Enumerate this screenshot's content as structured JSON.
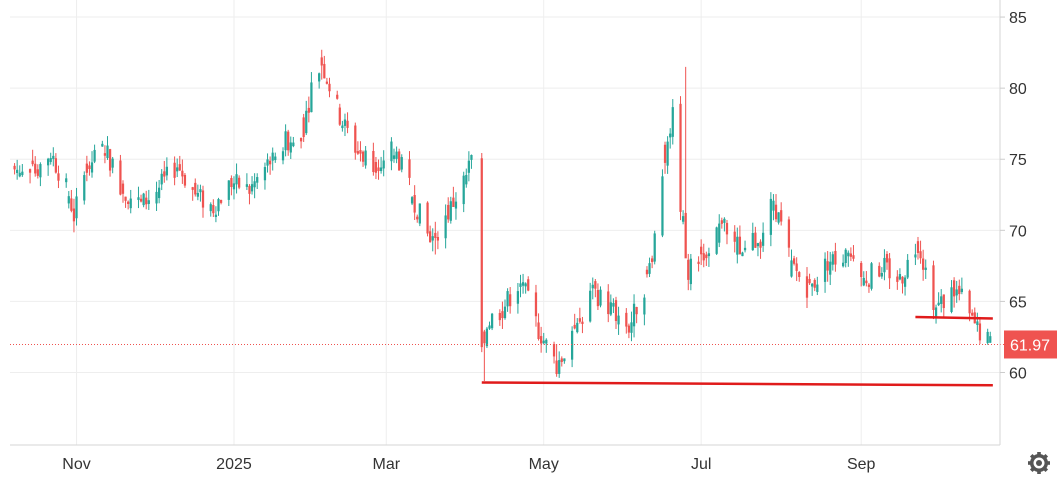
{
  "chart_data": {
    "type": "candlestick",
    "title": "",
    "xlabel": "",
    "ylabel": "",
    "ylim": [
      54.9,
      86.2
    ],
    "grid": true,
    "legend": "none",
    "colors": {
      "up": "#26a69a",
      "down": "#ef5350",
      "support": "#e01b1b",
      "tag": "#ef5350",
      "grid": "#eeeeee"
    },
    "y_ticks": [
      "85",
      "80",
      "75",
      "70",
      "65",
      "60"
    ],
    "x_ticks": [
      {
        "label": "Nov",
        "date": "2024-11-01"
      },
      {
        "label": "2025",
        "date": "2025-01-01"
      },
      {
        "label": "Mar",
        "date": "2025-03-01"
      },
      {
        "label": "May",
        "date": "2025-05-01"
      },
      {
        "label": "Jul",
        "date": "2025-07-01"
      },
      {
        "label": "Sep",
        "date": "2025-09-01"
      }
    ],
    "x_range": [
      "2024-10-07",
      "2025-10-24"
    ],
    "last_price": {
      "label": "61.97",
      "value": 61.97
    },
    "support_lines": [
      {
        "from": "2025-04-07",
        "to": "2025-10-22",
        "y_start": 59.3,
        "y_end": 59.1
      },
      {
        "from": "2025-09-22",
        "to": "2025-10-22",
        "y_start": 63.9,
        "y_end": 63.8
      }
    ],
    "anchors": [
      [
        "2024-10-08",
        74.3
      ],
      [
        "2024-10-15",
        73.9
      ],
      [
        "2024-10-22",
        75.5
      ],
      [
        "2024-10-29",
        72.5
      ],
      [
        "2024-10-31",
        71.0
      ],
      [
        "2024-11-05",
        74.5
      ],
      [
        "2024-11-12",
        75.8
      ],
      [
        "2024-11-19",
        72.8
      ],
      [
        "2024-11-26",
        71.8
      ],
      [
        "2024-12-03",
        73.0
      ],
      [
        "2024-12-10",
        74.6
      ],
      [
        "2024-12-17",
        72.5
      ],
      [
        "2024-12-24",
        71.6
      ],
      [
        "2024-12-31",
        73.4
      ],
      [
        "2025-01-07",
        72.8
      ],
      [
        "2025-01-14",
        74.6
      ],
      [
        "2025-01-21",
        76.2
      ],
      [
        "2025-01-28",
        77.2
      ],
      [
        "2025-01-31",
        80.0
      ],
      [
        "2025-02-04",
        81.8
      ],
      [
        "2025-02-11",
        78.0
      ],
      [
        "2025-02-18",
        75.5
      ],
      [
        "2025-02-25",
        74.8
      ],
      [
        "2025-03-04",
        75.8
      ],
      [
        "2025-03-11",
        72.5
      ],
      [
        "2025-03-18",
        69.2
      ],
      [
        "2025-03-25",
        71.2
      ],
      [
        "2025-04-01",
        73.8
      ],
      [
        "2025-04-03",
        75.0
      ],
      [
        "2025-04-07",
        61.0
      ],
      [
        "2025-04-09",
        63.5
      ],
      [
        "2025-04-15",
        64.5
      ],
      [
        "2025-04-22",
        66.5
      ],
      [
        "2025-04-29",
        63.0
      ],
      [
        "2025-05-06",
        60.5
      ],
      [
        "2025-05-13",
        62.5
      ],
      [
        "2025-05-20",
        65.8
      ],
      [
        "2025-05-27",
        64.5
      ],
      [
        "2025-06-03",
        63.2
      ],
      [
        "2025-06-10",
        66.5
      ],
      [
        "2025-06-13",
        69.5
      ],
      [
        "2025-06-17",
        75.5
      ],
      [
        "2025-06-20",
        78.0
      ],
      [
        "2025-06-23",
        72.0
      ],
      [
        "2025-06-26",
        67.0
      ],
      [
        "2025-07-03",
        68.8
      ],
      [
        "2025-07-10",
        70.2
      ],
      [
        "2025-07-17",
        68.5
      ],
      [
        "2025-07-24",
        69.5
      ],
      [
        "2025-07-29",
        72.2
      ],
      [
        "2025-08-05",
        67.5
      ],
      [
        "2025-08-12",
        65.8
      ],
      [
        "2025-08-19",
        67.8
      ],
      [
        "2025-08-26",
        68.2
      ],
      [
        "2025-09-02",
        66.5
      ],
      [
        "2025-09-09",
        67.5
      ],
      [
        "2025-09-16",
        66.5
      ],
      [
        "2025-09-23",
        69.2
      ],
      [
        "2025-09-30",
        64.5
      ],
      [
        "2025-10-07",
        65.8
      ],
      [
        "2025-10-10",
        65.2
      ],
      [
        "2025-10-14",
        63.5
      ],
      [
        "2025-10-21",
        61.97
      ]
    ],
    "gaps": [
      "2025-04-04"
    ],
    "extremes": [
      {
        "date": "2025-04-08",
        "high": 63.0,
        "low": 59.4
      },
      {
        "date": "2025-06-25",
        "high": 81.5,
        "low": 69.5
      },
      {
        "date": "2025-02-04",
        "high": 82.7,
        "low": 80.6
      },
      {
        "date": "2025-03-20",
        "high": 70.6,
        "low": 68.3
      },
      {
        "date": "2025-05-06",
        "high": 62.0,
        "low": 59.7
      }
    ]
  },
  "toolbar": {
    "settings_icon": "gear-icon"
  }
}
